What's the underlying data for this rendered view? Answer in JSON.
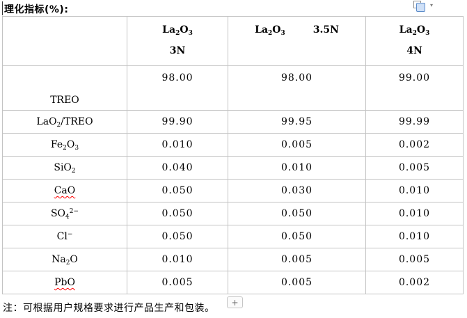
{
  "title": "理化指标(%):",
  "toolbar": {
    "paste_options_icon": "paste-options",
    "dropdown_arrow": "▾"
  },
  "table": {
    "header": [
      {
        "layout": "stack",
        "lines": []
      },
      {
        "layout": "stack",
        "lines": [
          [
            {
              "t": "La"
            },
            {
              "s": "2"
            },
            {
              "t": "O"
            },
            {
              "s": "3"
            }
          ],
          [
            {
              "t": "3N"
            }
          ]
        ]
      },
      {
        "layout": "inline",
        "lines": [
          [
            {
              "t": "La"
            },
            {
              "s": "2"
            },
            {
              "t": "O"
            },
            {
              "s": "3"
            }
          ],
          [
            {
              "t": "3.5N"
            }
          ]
        ]
      },
      {
        "layout": "stack",
        "lines": [
          [
            {
              "t": "La"
            },
            {
              "s": "2"
            },
            {
              "t": "O"
            },
            {
              "s": "3"
            }
          ],
          [
            {
              "t": "4N"
            }
          ]
        ]
      }
    ],
    "rows": [
      {
        "label": [
          {
            "t": "TREO"
          }
        ],
        "values": [
          "98.00",
          "98.00",
          "99.00"
        ]
      },
      {
        "label": [
          {
            "t": "LaO"
          },
          {
            "s": "2"
          },
          {
            "t": "/TREO"
          }
        ],
        "values": [
          "99.90",
          "99.95",
          "99.99"
        ]
      },
      {
        "label": [
          {
            "t": "Fe"
          },
          {
            "s": "2"
          },
          {
            "t": "O"
          },
          {
            "s": "3"
          }
        ],
        "values": [
          "0.010",
          "0.005",
          "0.002"
        ]
      },
      {
        "label": [
          {
            "t": "SiO"
          },
          {
            "s": "2"
          }
        ],
        "values": [
          "0.040",
          "0.010",
          "0.005"
        ]
      },
      {
        "label": [
          {
            "t": "CaO"
          }
        ],
        "spellcheck": true,
        "values": [
          "0.050",
          "0.030",
          "0.010"
        ]
      },
      {
        "label": [
          {
            "t": "SO"
          },
          {
            "s": "4"
          },
          {
            "p": "2−"
          }
        ],
        "values": [
          "0.050",
          "0.050",
          "0.010"
        ]
      },
      {
        "label": [
          {
            "t": "Cl"
          },
          {
            "p": "−"
          }
        ],
        "values": [
          "0.050",
          "0.050",
          "0.010"
        ]
      },
      {
        "label": [
          {
            "t": "Na"
          },
          {
            "s": "2"
          },
          {
            "t": "O"
          }
        ],
        "values": [
          "0.010",
          "0.005",
          "0.005"
        ]
      },
      {
        "label": [
          {
            "t": "PbO"
          }
        ],
        "spellcheck": true,
        "values": [
          "0.005",
          "0.005",
          "0.002"
        ]
      }
    ]
  },
  "note": "注：可根据用户规格要求进行产品生产和包装。",
  "plus_button": "+",
  "colors": {
    "table_border": "#c3c3c3",
    "spellcheck_underline": "#ff0000",
    "paste_icon_fill": "#cfe0f7",
    "paste_icon_border": "#5b8bc9"
  }
}
